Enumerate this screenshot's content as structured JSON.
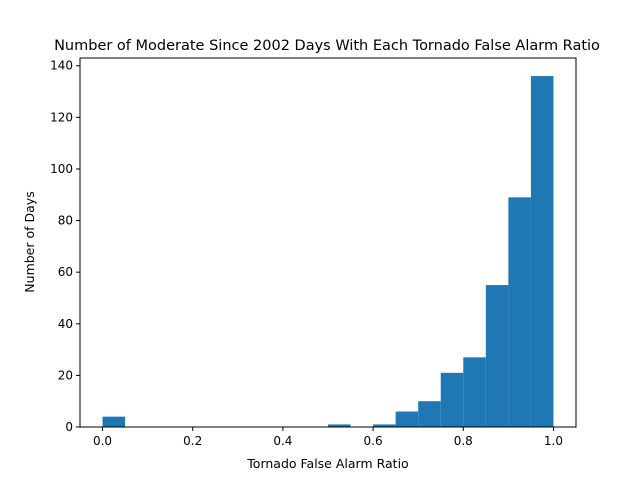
{
  "chart_data": {
    "type": "bar",
    "title": "Number of Moderate Since 2002 Days With Each Tornado False Alarm Ratio",
    "xlabel": "Tornado False Alarm Ratio",
    "ylabel": "Number of Days",
    "xlim": [
      -0.05,
      1.05
    ],
    "ylim": [
      0,
      143
    ],
    "xticks": [
      0.0,
      0.2,
      0.4,
      0.6,
      0.8,
      1.0
    ],
    "xtick_labels": [
      "0.0",
      "0.2",
      "0.4",
      "0.6",
      "0.8",
      "1.0"
    ],
    "yticks": [
      0,
      20,
      40,
      60,
      80,
      100,
      120,
      140
    ],
    "ytick_labels": [
      "0",
      "20",
      "40",
      "60",
      "80",
      "100",
      "120",
      "140"
    ],
    "bin_edges": [
      0.0,
      0.05,
      0.1,
      0.15,
      0.2,
      0.25,
      0.3,
      0.35,
      0.4,
      0.45,
      0.5,
      0.55,
      0.6,
      0.65,
      0.7,
      0.75,
      0.8,
      0.85,
      0.9,
      0.95,
      1.0
    ],
    "values": [
      4,
      0,
      0,
      0,
      0,
      0,
      0,
      0,
      0,
      0,
      1,
      0,
      1,
      6,
      10,
      21,
      27,
      55,
      89,
      136
    ],
    "bar_color": "#1f77b4",
    "grid": false,
    "legend": "none"
  }
}
